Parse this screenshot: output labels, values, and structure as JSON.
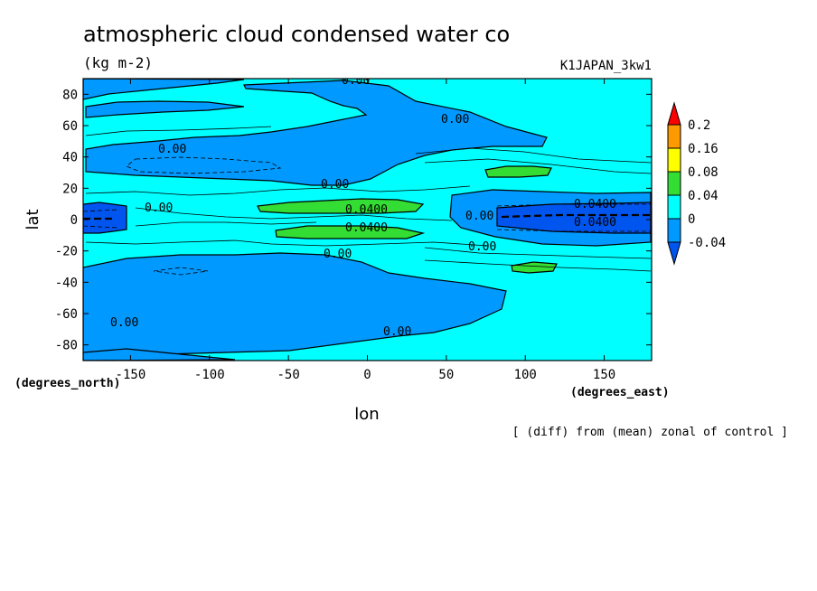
{
  "chart_data": {
    "type": "heatmap",
    "title": "atmospheric cloud condensed water co",
    "units": "(kg m-2)",
    "model": "K1JAPAN_3kw1",
    "xlabel": "lon",
    "ylabel": "lat",
    "x_units": "(degrees_east)",
    "y_units": "(degrees_north)",
    "xlim": [
      -180,
      180
    ],
    "ylim": [
      -90,
      90
    ],
    "x_ticks": [
      -150,
      -100,
      -50,
      0,
      50,
      100,
      150
    ],
    "y_ticks": [
      -80,
      -60,
      -40,
      -20,
      0,
      20,
      40,
      60,
      80
    ],
    "footnote": "[ (diff) from (mean) zonal of control ]",
    "colorbar": {
      "levels": [
        "0.2",
        "0.16",
        "0.08",
        "0.04",
        "0",
        "-0.04"
      ],
      "colors": [
        "#ff0000",
        "#ff9900",
        "#ffff00",
        "#33dd33",
        "#00ffff",
        "#0099ff",
        "#0055ee"
      ]
    },
    "contour_labels": [
      "0.00",
      "0.00",
      "0.00",
      "0.00",
      "0.00",
      "0.00",
      "0.00",
      "0.00",
      "0.00",
      "0.00",
      "0.0400",
      "0.0400",
      "0.0400",
      "0.0400"
    ]
  }
}
